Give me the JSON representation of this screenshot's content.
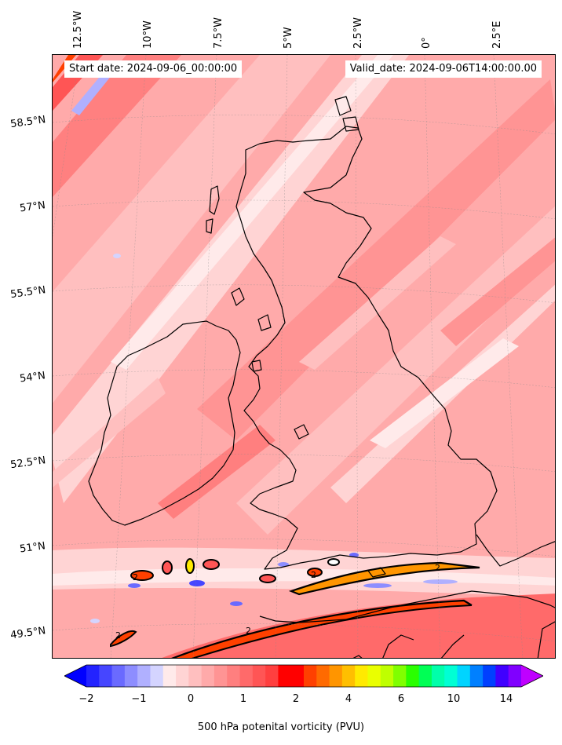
{
  "header": {
    "start_label": "Start date: 2024-09-06_00:00:00",
    "valid_label": "Valid_date: 2024-09-06T14:00:00.00"
  },
  "longitude_labels": [
    "12.5°W",
    "10°W",
    "7.5°W",
    "5°W",
    "2.5°W",
    "0°",
    "2.5°E"
  ],
  "latitude_labels": [
    "58.5°N",
    "57°N",
    "55.5°N",
    "54°N",
    "52.5°N",
    "51°N",
    "49.5°N"
  ],
  "colorbar": {
    "title": "500 hPa potenital vorticity (PVU)",
    "tick_labels": [
      "−2",
      "−1",
      "0",
      "1",
      "2",
      "4",
      "6",
      "10",
      "14"
    ],
    "colors": [
      "#0000ff",
      "#2323ff",
      "#4646ff",
      "#6a6aff",
      "#8d8dff",
      "#b0b0ff",
      "#d4d4ff",
      "#ffeaea",
      "#ffd4d4",
      "#ffbfbf",
      "#ffaaaa",
      "#ff9494",
      "#ff7f7f",
      "#ff6a6a",
      "#ff5555",
      "#ff3f3f",
      "#ff0000",
      "#ff0000",
      "#ff4000",
      "#ff6a00",
      "#ff9500",
      "#ffbf00",
      "#ffea00",
      "#eaff00",
      "#bfff00",
      "#80ff00",
      "#2aff00",
      "#00ff55",
      "#00ffaa",
      "#00ffd4",
      "#00d4ff",
      "#0080ff",
      "#0040ff",
      "#4000ff",
      "#8000ff",
      "#bf00ff"
    ]
  },
  "contour_labels": [
    "2",
    "2",
    "2",
    "2",
    "2"
  ]
}
